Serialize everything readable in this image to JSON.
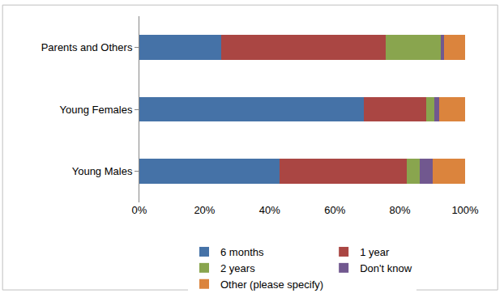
{
  "chart_data": {
    "type": "bar",
    "orientation": "horizontal",
    "stacked": true,
    "categories": [
      "Young Males",
      "Young Females",
      "Parents and Others"
    ],
    "series": [
      {
        "name": "6 months",
        "color": "#4572a7",
        "values": [
          43,
          69,
          25
        ]
      },
      {
        "name": "1 year",
        "color": "#aa4643",
        "values": [
          39,
          19,
          50.5
        ]
      },
      {
        "name": "2 years",
        "color": "#89a54e",
        "values": [
          4,
          2.5,
          17
        ]
      },
      {
        "name": "Don't know",
        "color": "#71588f",
        "values": [
          4,
          1.5,
          1
        ]
      },
      {
        "name": "Other (please specify)",
        "color": "#db843d",
        "values": [
          10,
          8,
          6.5
        ]
      }
    ],
    "xlim": [
      0,
      100
    ],
    "xticks": [
      {
        "value": 0,
        "label": "0%"
      },
      {
        "value": 20,
        "label": "20%"
      },
      {
        "value": 40,
        "label": "40%"
      },
      {
        "value": 60,
        "label": "60%"
      },
      {
        "value": 80,
        "label": "80%"
      },
      {
        "value": 100,
        "label": "100%"
      }
    ],
    "grid": false,
    "legend": "bottom"
  }
}
